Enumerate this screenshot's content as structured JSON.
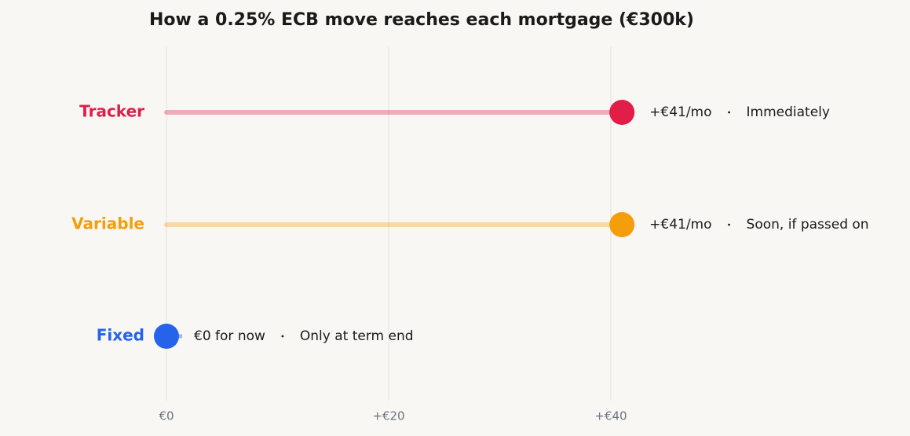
{
  "chart_data": {
    "type": "lollipop",
    "title": "How a 0.25% ECB move reaches each mortgage (€300k)",
    "categories": [
      "Tracker",
      "Variable",
      "Fixed"
    ],
    "values": [
      41,
      41,
      0
    ],
    "value_labels": [
      "+€41/mo",
      "+€41/mo",
      "€0 for now"
    ],
    "timing": [
      "Immediately",
      "Soon, if passed on",
      "Only at term end"
    ],
    "colors": [
      "#e11d48",
      "#f59e0b",
      "#2563eb"
    ],
    "xlim": [
      -10,
      60
    ],
    "xticks": [
      {
        "value": 0,
        "label": "€0"
      },
      {
        "value": 20,
        "label": "+€20"
      },
      {
        "value": 40,
        "label": "+€40"
      }
    ],
    "grid": true
  }
}
